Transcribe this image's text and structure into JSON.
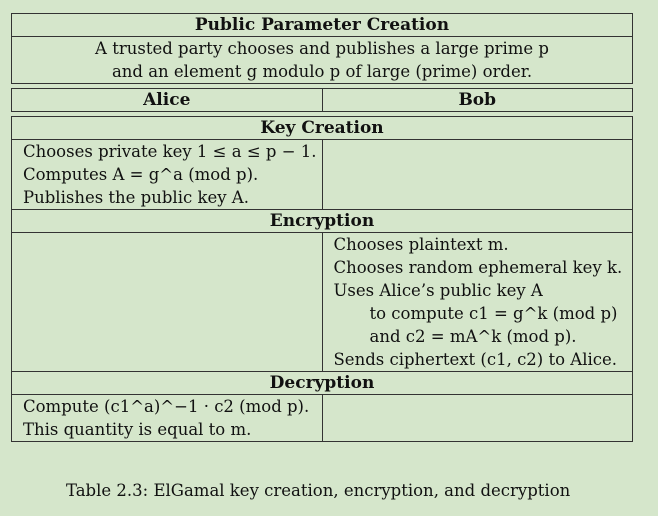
{
  "public_parameter_creation": {
    "title": "Public Parameter Creation",
    "line1": "A trusted party chooses and publishes a large prime p",
    "line2": "and an element g modulo p of large (prime) order."
  },
  "parties": {
    "alice": "Alice",
    "bob": "Bob"
  },
  "key_creation": {
    "title": "Key Creation",
    "lines": [
      "Chooses private key 1 ≤ a ≤ p − 1.",
      "Computes A = g^a (mod p).",
      "Publishes the public key A."
    ]
  },
  "encryption": {
    "title": "Encryption",
    "lines": [
      "Chooses plaintext m.",
      "Chooses random ephemeral key k.",
      "Uses Alice’s public key A",
      "to compute c1 = g^k (mod p)",
      "and c2 = mA^k (mod p).",
      "Sends ciphertext (c1, c2) to Alice."
    ]
  },
  "decryption": {
    "title": "Decryption",
    "lines": [
      "Compute (c1^a)^−1 · c2 (mod p).",
      "This quantity is equal to m."
    ]
  },
  "caption": "Table 2.3: ElGamal key creation, encryption, and decryption"
}
